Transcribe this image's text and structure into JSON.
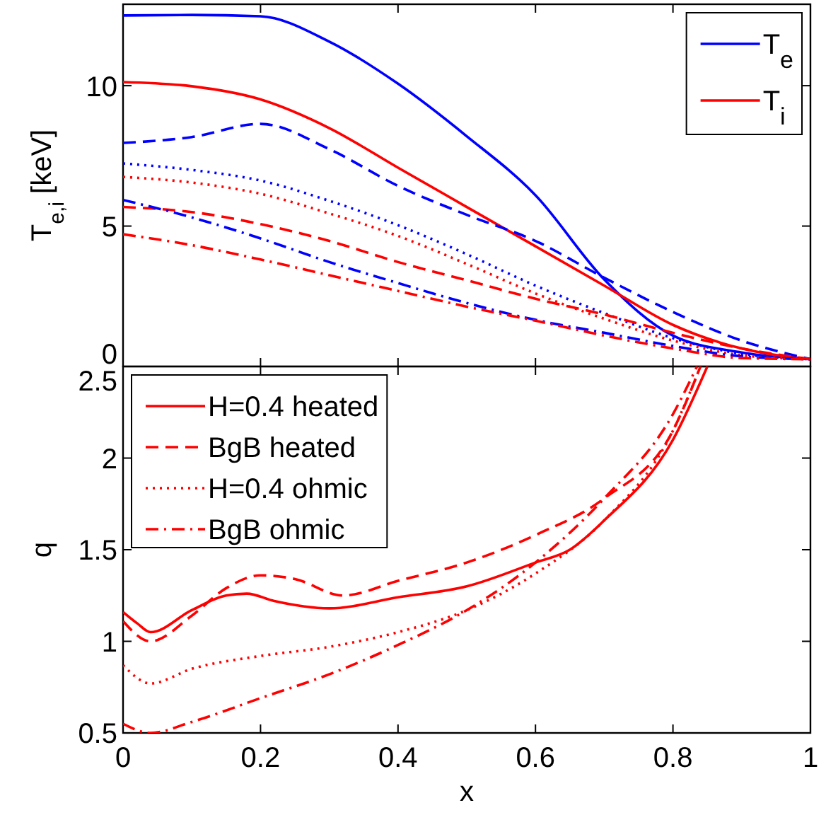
{
  "chart_data": [
    {
      "type": "line",
      "ylabel": "T$_{e,i}$ [keV]",
      "xlim": [
        0,
        1
      ],
      "xticks": [
        0,
        0.2,
        0.4,
        0.6,
        0.8,
        1
      ],
      "ylim": [
        0,
        12.9
      ],
      "yticks": [
        0,
        5,
        10
      ],
      "tick_labels": "y",
      "grid": false,
      "legend": "top right",
      "x": [
        0,
        0.1,
        0.2,
        0.3,
        0.4,
        0.5,
        0.6,
        0.7,
        0.8,
        0.9,
        1
      ],
      "series": [
        {
          "name": "T$_{e}$",
          "color": "#0000ff",
          "line_style": "solid",
          "values": [
            12.5,
            12.52,
            12.47,
            11.57,
            10.07,
            8.2,
            6.1,
            3.1,
            1.1,
            0.5,
            0.26
          ]
        },
        {
          "name": "T$_{i}$",
          "color": "#ff0000",
          "line_style": "solid",
          "values": [
            10.13,
            9.98,
            9.51,
            8.49,
            7.08,
            5.68,
            4.28,
            2.88,
            1.48,
            0.64,
            0.26
          ]
        },
        {
          "color": "#0000ff",
          "line_style": "dashed",
          "values": [
            7.96,
            8.17,
            8.64,
            7.74,
            6.43,
            5.4,
            4.47,
            3.16,
            1.94,
            0.92,
            0.26
          ]
        },
        {
          "color": "#0000ff",
          "line_style": "dotted",
          "values": [
            7.23,
            7.0,
            6.62,
            5.9,
            5.03,
            4.0,
            2.88,
            1.9,
            1.01,
            0.45,
            0.26
          ]
        },
        {
          "color": "#ff0000",
          "line_style": "dotted",
          "values": [
            6.75,
            6.55,
            6.15,
            5.45,
            4.65,
            3.65,
            2.6,
            1.7,
            0.92,
            0.4,
            0.26
          ]
        },
        {
          "color": "#ff0000",
          "line_style": "dashed",
          "values": [
            5.68,
            5.5,
            5.07,
            4.47,
            3.72,
            3.07,
            2.41,
            1.85,
            1.2,
            0.64,
            0.26
          ]
        },
        {
          "color": "#0000ff",
          "line_style": "dashdot",
          "values": [
            5.93,
            5.31,
            4.56,
            3.72,
            2.97,
            2.26,
            1.66,
            1.2,
            0.73,
            0.36,
            0.26
          ]
        },
        {
          "color": "#ff0000",
          "line_style": "dashdot",
          "values": [
            4.71,
            4.32,
            3.81,
            3.25,
            2.69,
            2.13,
            1.63,
            1.1,
            0.64,
            0.3,
            0.26
          ]
        }
      ]
    },
    {
      "type": "line",
      "xlabel": "x",
      "ylabel": "q",
      "xlim": [
        0,
        1
      ],
      "xticks": [
        0,
        0.2,
        0.4,
        0.6,
        0.8,
        1
      ],
      "ylim": [
        0.5,
        2.5
      ],
      "yticks": [
        0.5,
        1,
        1.5,
        2,
        2.5
      ],
      "grid": false,
      "legend": "top left",
      "series": [
        {
          "name": "H=0.4 heated",
          "color": "#ff0000",
          "line_style": "solid",
          "x": [
            0,
            0.02,
            0.04,
            0.1,
            0.15,
            0.18,
            0.22,
            0.3,
            0.4,
            0.5,
            0.6,
            0.65,
            0.7,
            0.8,
            0.85
          ],
          "values": [
            1.16,
            1.1,
            1.05,
            1.17,
            1.25,
            1.26,
            1.22,
            1.18,
            1.24,
            1.3,
            1.43,
            1.5,
            1.66,
            2.1,
            2.5
          ]
        },
        {
          "name": "BgB heated",
          "color": "#ff0000",
          "line_style": "dashed",
          "x": [
            0,
            0.04,
            0.1,
            0.15,
            0.2,
            0.25,
            0.32,
            0.4,
            0.5,
            0.6,
            0.7,
            0.8,
            0.84
          ],
          "values": [
            1.11,
            1.0,
            1.14,
            1.29,
            1.36,
            1.34,
            1.25,
            1.33,
            1.43,
            1.58,
            1.78,
            2.15,
            2.5
          ]
        },
        {
          "name": "H=0.4 ohmic",
          "color": "#ff0000",
          "line_style": "dotted",
          "x": [
            0,
            0.04,
            0.1,
            0.2,
            0.3,
            0.4,
            0.5,
            0.6,
            0.7,
            0.8,
            0.84
          ],
          "values": [
            0.87,
            0.77,
            0.85,
            0.92,
            0.97,
            1.05,
            1.17,
            1.37,
            1.66,
            2.15,
            2.5
          ]
        },
        {
          "name": "BgB ohmic",
          "color": "#ff0000",
          "line_style": "dashdot",
          "x": [
            0,
            0.04,
            0.1,
            0.2,
            0.3,
            0.4,
            0.5,
            0.6,
            0.7,
            0.8,
            0.835
          ],
          "values": [
            0.55,
            0.5,
            0.56,
            0.69,
            0.82,
            0.98,
            1.17,
            1.43,
            1.78,
            2.24,
            2.5
          ]
        }
      ]
    }
  ]
}
